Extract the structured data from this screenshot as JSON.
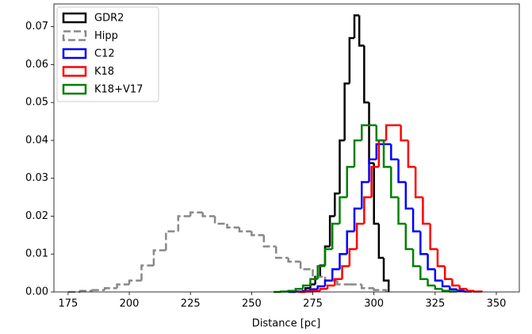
{
  "chart_data": {
    "type": "histogram",
    "xlabel": "Distance [pc]",
    "xlim": [
      169.2,
      359.4
    ],
    "ylim": [
      0,
      0.076
    ],
    "xticks": [
      175,
      200,
      225,
      250,
      275,
      300,
      325,
      350
    ],
    "yticks": [
      {
        "value": 0,
        "label": "0.00"
      },
      {
        "value": 0.01,
        "label": "0.01"
      },
      {
        "value": 0.02,
        "label": "0.02"
      },
      {
        "value": 0.03,
        "label": "0.03"
      },
      {
        "value": 0.04,
        "label": "0.04"
      },
      {
        "value": 0.05,
        "label": "0.05"
      },
      {
        "value": 0.06,
        "label": "0.06"
      },
      {
        "value": 0.07,
        "label": "0.07"
      }
    ],
    "legend": "upper left",
    "series": [
      {
        "name": "GDR2",
        "color": "#000000",
        "linestyle": "solid",
        "bins": [
          270,
          272,
          274,
          276,
          278,
          280,
          282,
          284,
          286,
          288,
          290,
          292,
          294,
          296,
          298,
          300,
          302,
          304,
          306
        ],
        "values": [
          0.0,
          0.001,
          0.002,
          0.004,
          0.007,
          0.012,
          0.02,
          0.026,
          0.04,
          0.055,
          0.067,
          0.073,
          0.065,
          0.05,
          0.034,
          0.018,
          0.009,
          0.003
        ]
      },
      {
        "name": "Hipp",
        "color": "#888888",
        "linestyle": "dashed",
        "bins": [
          175,
          180,
          185,
          190,
          195,
          200,
          205,
          210,
          215,
          220,
          225,
          230,
          235,
          240,
          245,
          250,
          255,
          260,
          265,
          270,
          275,
          280,
          285,
          290,
          295,
          300,
          305
        ],
        "values": [
          0.0,
          0.0003,
          0.0005,
          0.001,
          0.002,
          0.003,
          0.007,
          0.011,
          0.016,
          0.02,
          0.021,
          0.02,
          0.018,
          0.017,
          0.016,
          0.015,
          0.012,
          0.009,
          0.008,
          0.006,
          0.004,
          0.003,
          0.002,
          0.002,
          0.001,
          0.0005
        ]
      },
      {
        "name": "C12",
        "color": "#0000ff",
        "linestyle": "solid",
        "bins": [
          265,
          268,
          271,
          274,
          277,
          280,
          283,
          286,
          289,
          292,
          295,
          298,
          301,
          304,
          307,
          310,
          313,
          316,
          319,
          322,
          325,
          328,
          331,
          334,
          337,
          340
        ],
        "values": [
          0.0,
          0.0001,
          0.0003,
          0.0007,
          0.0015,
          0.003,
          0.006,
          0.01,
          0.016,
          0.022,
          0.029,
          0.035,
          0.039,
          0.039,
          0.035,
          0.029,
          0.022,
          0.016,
          0.01,
          0.006,
          0.003,
          0.0015,
          0.0007,
          0.0003,
          0.0001
        ]
      },
      {
        "name": "K18",
        "color": "#ff0000",
        "linestyle": "solid",
        "bins": [
          269,
          272,
          275,
          278,
          281,
          284,
          287,
          290,
          293,
          296,
          299,
          302,
          305,
          308,
          311,
          314,
          317,
          320,
          323,
          326,
          329,
          332,
          335,
          338,
          341,
          344
        ],
        "values": [
          0.0,
          0.0001,
          0.0003,
          0.0008,
          0.0017,
          0.0034,
          0.0068,
          0.0113,
          0.018,
          0.025,
          0.033,
          0.04,
          0.044,
          0.044,
          0.04,
          0.033,
          0.025,
          0.018,
          0.0113,
          0.0068,
          0.0034,
          0.0017,
          0.0008,
          0.0003,
          0.0001
        ]
      },
      {
        "name": "K18+V17",
        "color": "#008000",
        "linestyle": "solid",
        "bins": [
          259,
          262,
          265,
          268,
          271,
          274,
          277,
          280,
          283,
          286,
          289,
          292,
          295,
          298,
          301,
          304,
          307,
          310,
          313,
          316,
          319,
          322,
          325,
          328,
          331,
          334
        ],
        "values": [
          0.0,
          0.0001,
          0.0003,
          0.0008,
          0.0017,
          0.0034,
          0.0068,
          0.0113,
          0.018,
          0.025,
          0.033,
          0.04,
          0.044,
          0.044,
          0.04,
          0.033,
          0.025,
          0.018,
          0.0113,
          0.0068,
          0.0034,
          0.0017,
          0.0008,
          0.0003,
          0.0001
        ]
      }
    ]
  }
}
